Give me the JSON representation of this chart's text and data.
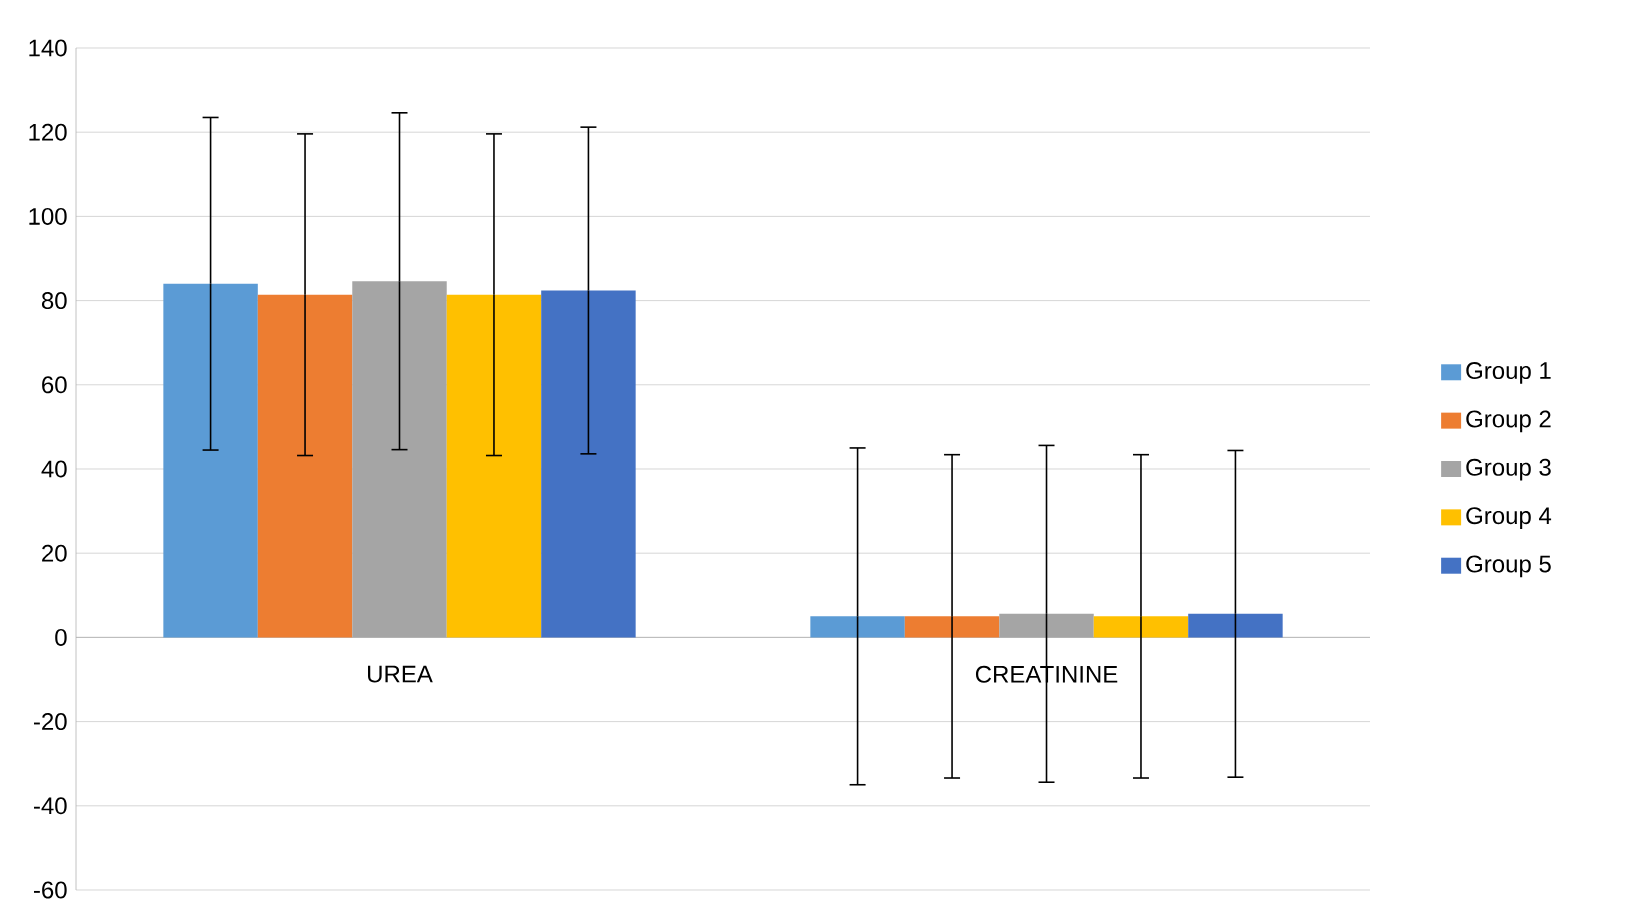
{
  "chart_data": {
    "type": "bar",
    "categories": [
      "UREA",
      "CREATININE"
    ],
    "series": [
      {
        "name": "Group 1",
        "color": "#5b9bd5",
        "values": [
          84.0,
          5.0
        ],
        "errors": [
          39.5,
          40.0
        ]
      },
      {
        "name": "Group 2",
        "color": "#ed7d31",
        "values": [
          81.4,
          5.0
        ],
        "errors": [
          38.2,
          38.4
        ]
      },
      {
        "name": "Group 3",
        "color": "#a5a5a5",
        "values": [
          84.6,
          5.6
        ],
        "errors": [
          40.0,
          40.0
        ]
      },
      {
        "name": "Group 4",
        "color": "#ffc000",
        "values": [
          81.4,
          5.0
        ],
        "errors": [
          38.2,
          38.4
        ]
      },
      {
        "name": "Group 5",
        "color": "#4472c4",
        "values": [
          82.4,
          5.6
        ],
        "errors": [
          38.8,
          38.8
        ]
      }
    ],
    "ylim": [
      -60,
      140
    ],
    "yticks": [
      -60,
      -40,
      -20,
      0,
      20,
      40,
      60,
      80,
      100,
      120,
      140
    ],
    "grid": "y",
    "legend": "right"
  }
}
